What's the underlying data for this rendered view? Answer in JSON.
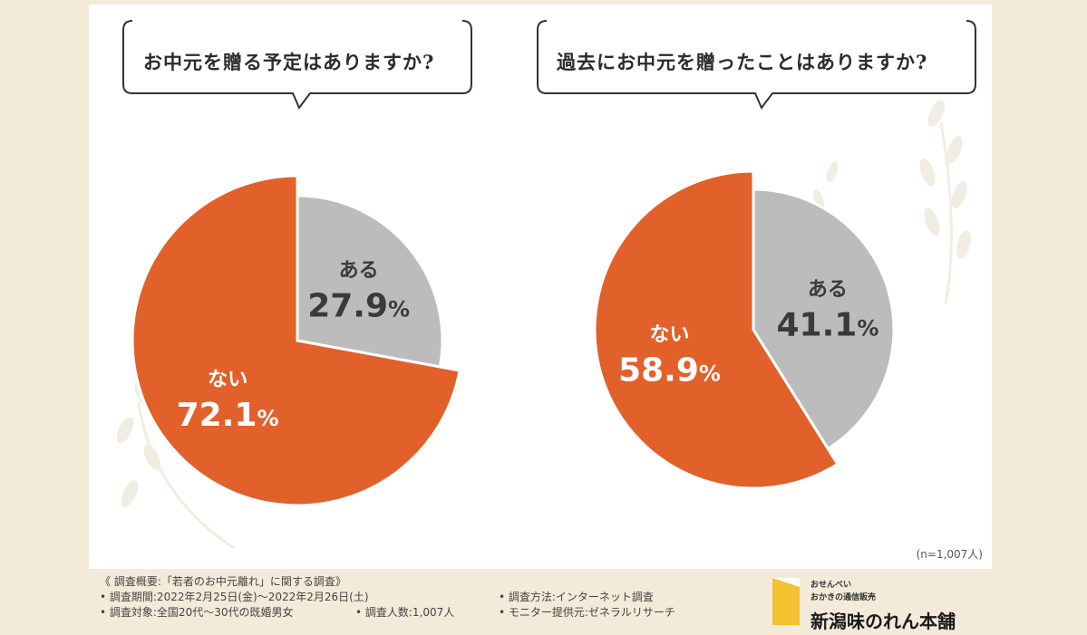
{
  "chart_data": [
    {
      "type": "pie",
      "title": "お中元を贈る予定はありますか?",
      "slices": [
        {
          "label": "ある",
          "value": 27.9,
          "color": "#bcbcbc"
        },
        {
          "label": "ない",
          "value": 72.1,
          "color": "#e2602a"
        }
      ]
    },
    {
      "type": "pie",
      "title": "過去にお中元を贈ったことはありますか?",
      "slices": [
        {
          "label": "ある",
          "value": 41.1,
          "color": "#bcbcbc"
        },
        {
          "label": "ない",
          "value": 58.9,
          "color": "#e2602a"
        }
      ]
    }
  ],
  "sample_note": "(n=1,007人)",
  "survey": {
    "heading": "《 調査概要:「若者のお中元離れ」に関する調査》",
    "period": "• 調査期間:2022年2月25日(金)〜2022年2月26日(土)",
    "method": "• 調査方法:インターネット調査",
    "target": "• 調査対象:全国20代〜30代の既婚男女",
    "respondents": "• 調査人数:1,007人",
    "provider": "• モニター提供元:ゼネラルリサーチ"
  },
  "logo": {
    "line1": "おせんべい",
    "line2": "おかきの通信販売",
    "name": "新潟味のれん本舗"
  }
}
